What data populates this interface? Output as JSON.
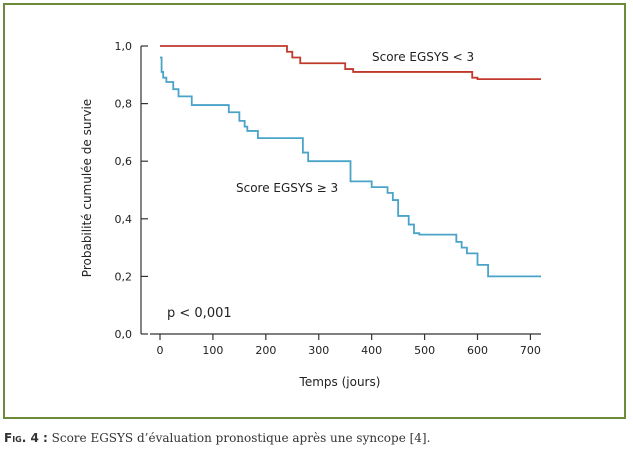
{
  "chart_data": {
    "type": "line",
    "step": true,
    "xlabel": "Temps (jours)",
    "ylabel": "Probabilité cumulée de survie",
    "xlim": [
      0,
      720
    ],
    "ylim": [
      0,
      1.0
    ],
    "x_ticks": [
      "0",
      "100",
      "200",
      "300",
      "400",
      "500",
      "600",
      "700"
    ],
    "x_tick_values": [
      0,
      100,
      200,
      300,
      400,
      500,
      600,
      700
    ],
    "y_ticks": [
      "0,0",
      "0,2",
      "0,4",
      "0,6",
      "0,8",
      "1,0"
    ],
    "y_tick_values": [
      0,
      0.2,
      0.4,
      0.6,
      0.8,
      1.0
    ],
    "annotation": "p < 0,001",
    "series": [
      {
        "name": "Score EGSYS < 3",
        "color": "#c0392b",
        "x": [
          0,
          240,
          250,
          265,
          280,
          350,
          365,
          590,
          600,
          720
        ],
        "y": [
          1.0,
          0.98,
          0.96,
          0.94,
          0.94,
          0.92,
          0.91,
          0.89,
          0.885,
          0.885
        ]
      },
      {
        "name": "Score EGSYS ≥ 3",
        "color": "#4aa3c8",
        "x": [
          0,
          3,
          6,
          12,
          25,
          35,
          60,
          130,
          150,
          160,
          165,
          185,
          265,
          270,
          280,
          340,
          360,
          400,
          430,
          440,
          450,
          470,
          480,
          490,
          560,
          570,
          580,
          600,
          620,
          720
        ],
        "y": [
          0.96,
          0.91,
          0.89,
          0.875,
          0.85,
          0.825,
          0.795,
          0.77,
          0.74,
          0.72,
          0.705,
          0.68,
          0.68,
          0.63,
          0.6,
          0.6,
          0.53,
          0.51,
          0.49,
          0.465,
          0.41,
          0.38,
          0.35,
          0.345,
          0.32,
          0.3,
          0.28,
          0.24,
          0.2,
          0.2
        ]
      }
    ]
  },
  "caption": {
    "label": "Fig. 4 :",
    "text": " Score EGSYS d’évaluation pronostique après une syncope [4]."
  },
  "colors": {
    "frame": "#6b8a3a",
    "axis": "#333333"
  }
}
